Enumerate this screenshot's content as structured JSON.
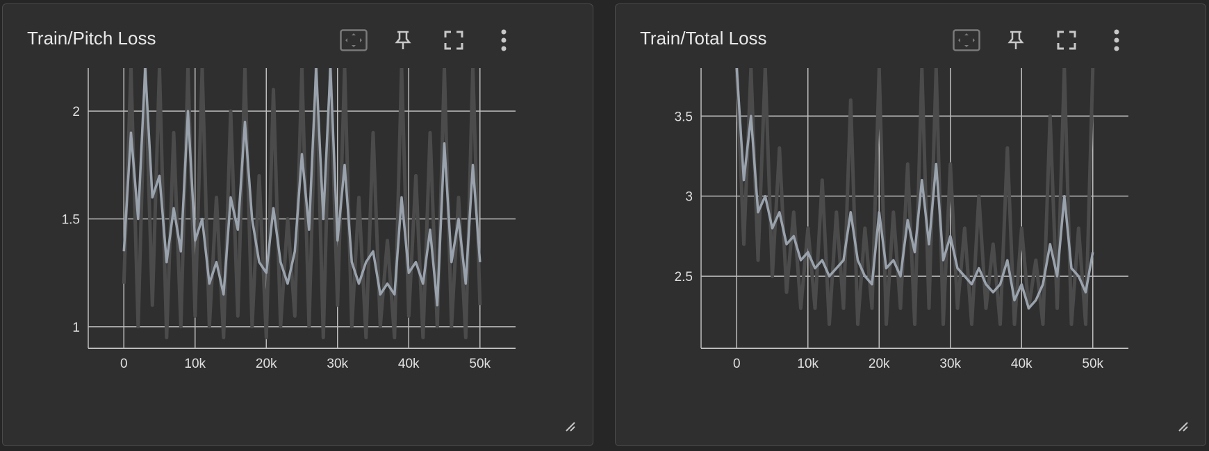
{
  "colors": {
    "page_bg": "#262626",
    "card_bg": "#2f2f2f",
    "grid": "#bdbdbd",
    "raw_series": "#4b4b4b",
    "smoothed_series": "#9aa3ad",
    "icon": "#c8c8c8"
  },
  "icons": [
    "fit-domain-icon",
    "pin-icon",
    "fullscreen-icon",
    "more-vert-icon"
  ],
  "chart_data": [
    {
      "type": "line",
      "title": "Train/Pitch Loss",
      "xlabel": "",
      "ylabel": "",
      "xlim": [
        -5000,
        55000
      ],
      "ylim": [
        0.9,
        2.2
      ],
      "x_ticks": [
        0,
        10000,
        20000,
        30000,
        40000,
        50000
      ],
      "x_tick_labels": [
        "0",
        "10k",
        "20k",
        "30k",
        "40k",
        "50k"
      ],
      "y_ticks": [
        1,
        1.5,
        2
      ],
      "y_tick_labels": [
        "1",
        "1.5",
        "2"
      ],
      "grid": true,
      "legend": "none",
      "series": [
        {
          "role": "raw",
          "x": [
            0,
            1000,
            2000,
            3000,
            4000,
            5000,
            6000,
            7000,
            8000,
            9000,
            10000,
            11000,
            12000,
            13000,
            14000,
            15000,
            16000,
            17000,
            18000,
            19000,
            20000,
            21000,
            22000,
            23000,
            24000,
            25000,
            26000,
            27000,
            28000,
            29000,
            30000,
            31000,
            32000,
            33000,
            34000,
            35000,
            36000,
            37000,
            38000,
            39000,
            40000,
            41000,
            42000,
            43000,
            44000,
            45000,
            46000,
            47000,
            48000,
            49000,
            50000
          ],
          "values": [
            1.2,
            2.2,
            1.0,
            2.2,
            1.1,
            2.2,
            0.95,
            1.9,
            1.0,
            2.2,
            1.05,
            2.2,
            1.0,
            1.6,
            0.95,
            2.0,
            1.05,
            2.2,
            1.0,
            1.7,
            0.95,
            2.1,
            1.0,
            1.5,
            1.05,
            2.2,
            1.0,
            2.2,
            0.95,
            2.2,
            1.1,
            2.2,
            1.0,
            1.6,
            0.95,
            1.9,
            1.0,
            1.4,
            0.95,
            2.2,
            1.05,
            1.7,
            0.95,
            1.9,
            1.0,
            2.2,
            1.0,
            1.6,
            0.95,
            2.2,
            1.1
          ]
        },
        {
          "role": "smoothed",
          "x": [
            0,
            1000,
            2000,
            3000,
            4000,
            5000,
            6000,
            7000,
            8000,
            9000,
            10000,
            11000,
            12000,
            13000,
            14000,
            15000,
            16000,
            17000,
            18000,
            19000,
            20000,
            21000,
            22000,
            23000,
            24000,
            25000,
            26000,
            27000,
            28000,
            29000,
            30000,
            31000,
            32000,
            33000,
            34000,
            35000,
            36000,
            37000,
            38000,
            39000,
            40000,
            41000,
            42000,
            43000,
            44000,
            45000,
            46000,
            47000,
            48000,
            49000,
            50000
          ],
          "values": [
            1.35,
            1.9,
            1.5,
            2.2,
            1.6,
            1.7,
            1.3,
            1.55,
            1.35,
            2.0,
            1.4,
            1.5,
            1.2,
            1.3,
            1.15,
            1.6,
            1.45,
            1.95,
            1.5,
            1.3,
            1.25,
            1.55,
            1.3,
            1.2,
            1.35,
            1.8,
            1.45,
            2.2,
            1.5,
            2.2,
            1.4,
            1.75,
            1.3,
            1.2,
            1.3,
            1.35,
            1.15,
            1.2,
            1.15,
            1.6,
            1.25,
            1.3,
            1.2,
            1.45,
            1.1,
            1.85,
            1.3,
            1.5,
            1.2,
            1.75,
            1.3
          ]
        }
      ]
    },
    {
      "type": "line",
      "title": "Train/Total Loss",
      "xlabel": "",
      "ylabel": "",
      "xlim": [
        -5000,
        55000
      ],
      "ylim": [
        2.05,
        3.8
      ],
      "x_ticks": [
        0,
        10000,
        20000,
        30000,
        40000,
        50000
      ],
      "x_tick_labels": [
        "0",
        "10k",
        "20k",
        "30k",
        "40k",
        "50k"
      ],
      "y_ticks": [
        2.5,
        3,
        3.5
      ],
      "y_tick_labels": [
        "2.5",
        "3",
        "3.5"
      ],
      "grid": true,
      "legend": "none",
      "series": [
        {
          "role": "raw",
          "x": [
            0,
            1000,
            2000,
            3000,
            4000,
            5000,
            6000,
            7000,
            8000,
            9000,
            10000,
            11000,
            12000,
            13000,
            14000,
            15000,
            16000,
            17000,
            18000,
            19000,
            20000,
            21000,
            22000,
            23000,
            24000,
            25000,
            26000,
            27000,
            28000,
            29000,
            30000,
            31000,
            32000,
            33000,
            34000,
            35000,
            36000,
            37000,
            38000,
            39000,
            40000,
            41000,
            42000,
            43000,
            44000,
            45000,
            46000,
            47000,
            48000,
            49000,
            50000
          ],
          "values": [
            3.8,
            2.7,
            3.8,
            2.6,
            3.8,
            2.5,
            3.3,
            2.4,
            2.9,
            2.3,
            2.8,
            2.3,
            3.1,
            2.2,
            2.9,
            2.3,
            3.6,
            2.2,
            2.8,
            2.3,
            3.8,
            2.2,
            2.9,
            2.3,
            3.2,
            2.2,
            3.8,
            2.3,
            3.8,
            2.2,
            3.2,
            2.3,
            2.8,
            2.2,
            3.0,
            2.3,
            2.7,
            2.2,
            3.3,
            2.2,
            2.8,
            2.3,
            2.6,
            2.2,
            3.5,
            2.3,
            3.8,
            2.2,
            2.8,
            2.2,
            3.8
          ]
        },
        {
          "role": "smoothed",
          "x": [
            0,
            1000,
            2000,
            3000,
            4000,
            5000,
            6000,
            7000,
            8000,
            9000,
            10000,
            11000,
            12000,
            13000,
            14000,
            15000,
            16000,
            17000,
            18000,
            19000,
            20000,
            21000,
            22000,
            23000,
            24000,
            25000,
            26000,
            27000,
            28000,
            29000,
            30000,
            31000,
            32000,
            33000,
            34000,
            35000,
            36000,
            37000,
            38000,
            39000,
            40000,
            41000,
            42000,
            43000,
            44000,
            45000,
            46000,
            47000,
            48000,
            49000,
            50000
          ],
          "values": [
            3.8,
            3.1,
            3.5,
            2.9,
            3.0,
            2.8,
            2.9,
            2.7,
            2.75,
            2.6,
            2.65,
            2.55,
            2.6,
            2.5,
            2.55,
            2.6,
            2.9,
            2.6,
            2.5,
            2.45,
            2.9,
            2.55,
            2.6,
            2.5,
            2.85,
            2.65,
            3.1,
            2.7,
            3.2,
            2.6,
            2.75,
            2.55,
            2.5,
            2.45,
            2.55,
            2.45,
            2.4,
            2.45,
            2.6,
            2.35,
            2.45,
            2.3,
            2.35,
            2.45,
            2.7,
            2.5,
            3.0,
            2.55,
            2.5,
            2.4,
            2.65
          ]
        }
      ]
    }
  ]
}
